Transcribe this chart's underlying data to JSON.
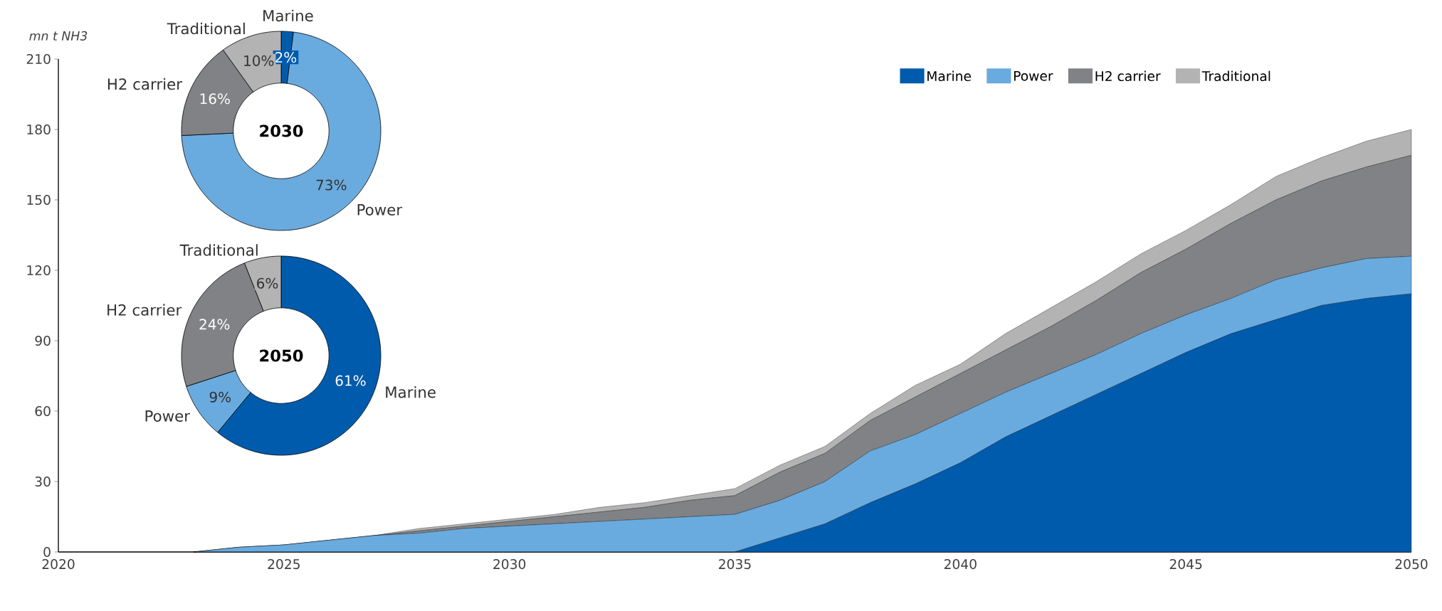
{
  "chart_data": [
    {
      "type": "area",
      "stacked": true,
      "ylabel": "mn t NH3",
      "x": [
        2023,
        2024,
        2025,
        2026,
        2027,
        2028,
        2029,
        2030,
        2031,
        2032,
        2033,
        2034,
        2035,
        2036,
        2037,
        2038,
        2039,
        2040,
        2041,
        2042,
        2043,
        2044,
        2045,
        2046,
        2047,
        2048,
        2049,
        2050
      ],
      "xlim": [
        2020,
        2050
      ],
      "xticks": [
        2020,
        2025,
        2030,
        2035,
        2040,
        2045,
        2050
      ],
      "ylim": [
        0,
        210
      ],
      "yticks": [
        0,
        30,
        60,
        90,
        120,
        150,
        180,
        210
      ],
      "legend": "top right",
      "series": [
        {
          "name": "Marine",
          "color": "#005bac",
          "values": [
            0,
            0,
            0,
            0,
            0,
            0,
            0,
            0,
            0,
            0,
            0,
            0,
            0,
            6,
            12,
            21,
            29,
            38,
            49,
            58,
            67,
            76,
            85,
            93,
            99,
            105,
            108,
            110
          ]
        },
        {
          "name": "Power",
          "color": "#6aabdf",
          "values": [
            0,
            2,
            3,
            5,
            7,
            8,
            10,
            11,
            12,
            13,
            14,
            15,
            16,
            16,
            18,
            22,
            21,
            21,
            19,
            18,
            17,
            17,
            16,
            15,
            17,
            16,
            17,
            16
          ]
        },
        {
          "name": "H2 carrier",
          "color": "#808285",
          "values": [
            0,
            0,
            0,
            0,
            0,
            1,
            1,
            2,
            3,
            4,
            5,
            7,
            8,
            12,
            12,
            13,
            16,
            17,
            18,
            20,
            23,
            26,
            28,
            32,
            34,
            37,
            39,
            43
          ]
        },
        {
          "name": "Traditional",
          "color": "#b3b3b3",
          "values": [
            0,
            0,
            0,
            0,
            0,
            1,
            1,
            1,
            1,
            2,
            2,
            2,
            3,
            3,
            3,
            3,
            5,
            4,
            7,
            8,
            8,
            8,
            8,
            8,
            10,
            10,
            11,
            11
          ]
        }
      ]
    },
    {
      "type": "donut",
      "title": "2030",
      "categories": [
        "Marine",
        "Power",
        "H2 carrier",
        "Traditional"
      ],
      "values": [
        2,
        73,
        16,
        10
      ],
      "value_labels": [
        "2%",
        "73%",
        "16%",
        "10%"
      ],
      "colors": [
        "#005bac",
        "#6aabdf",
        "#808285",
        "#b3b3b3"
      ]
    },
    {
      "type": "donut",
      "title": "2050",
      "categories": [
        "Marine",
        "Power",
        "H2 carrier",
        "Traditional"
      ],
      "values": [
        61,
        9,
        24,
        6
      ],
      "value_labels": [
        "61%",
        "9%",
        "24%",
        "6%"
      ],
      "colors": [
        "#005bac",
        "#6aabdf",
        "#808285",
        "#b3b3b3"
      ]
    }
  ]
}
